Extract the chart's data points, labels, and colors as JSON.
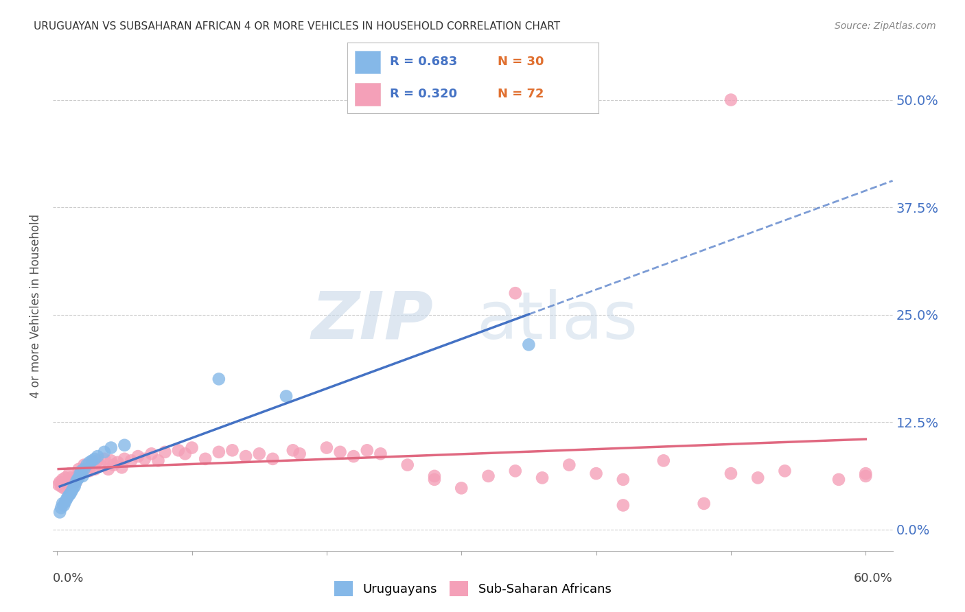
{
  "title": "URUGUAYAN VS SUBSAHARAN AFRICAN 4 OR MORE VEHICLES IN HOUSEHOLD CORRELATION CHART",
  "source": "Source: ZipAtlas.com",
  "ylabel": "4 or more Vehicles in Household",
  "ytick_labels": [
    "0.0%",
    "12.5%",
    "25.0%",
    "37.5%",
    "50.0%"
  ],
  "ytick_values": [
    0.0,
    0.125,
    0.25,
    0.375,
    0.5
  ],
  "xlim": [
    -0.003,
    0.62
  ],
  "ylim": [
    -0.025,
    0.545
  ],
  "color_uruguayan": "#85b8e8",
  "color_subsaharan": "#f4a0b8",
  "trendline_uru_color": "#4472c4",
  "trendline_sub_color": "#e06880",
  "background_color": "#ffffff",
  "grid_color": "#cccccc",
  "right_axis_color": "#4472c4",
  "legend_r_color": "#4472c4",
  "legend_n_color": "#e07030",
  "uruguayan_x": [
    0.002,
    0.003,
    0.004,
    0.005,
    0.006,
    0.007,
    0.008,
    0.009,
    0.01,
    0.011,
    0.012,
    0.013,
    0.014,
    0.015,
    0.016,
    0.017,
    0.018,
    0.019,
    0.02,
    0.022,
    0.024,
    0.026,
    0.028,
    0.03,
    0.035,
    0.04,
    0.05,
    0.12,
    0.17,
    0.35
  ],
  "uruguayan_y": [
    0.02,
    0.025,
    0.03,
    0.028,
    0.032,
    0.035,
    0.038,
    0.04,
    0.042,
    0.045,
    0.048,
    0.05,
    0.055,
    0.058,
    0.06,
    0.065,
    0.068,
    0.062,
    0.07,
    0.075,
    0.078,
    0.08,
    0.082,
    0.085,
    0.09,
    0.095,
    0.098,
    0.175,
    0.155,
    0.215
  ],
  "subsaharan_x": [
    0.001,
    0.002,
    0.003,
    0.004,
    0.005,
    0.006,
    0.007,
    0.008,
    0.009,
    0.01,
    0.012,
    0.014,
    0.015,
    0.016,
    0.018,
    0.02,
    0.022,
    0.024,
    0.026,
    0.028,
    0.03,
    0.032,
    0.035,
    0.038,
    0.04,
    0.042,
    0.045,
    0.048,
    0.05,
    0.055,
    0.06,
    0.065,
    0.07,
    0.075,
    0.08,
    0.09,
    0.095,
    0.1,
    0.11,
    0.12,
    0.13,
    0.14,
    0.15,
    0.16,
    0.175,
    0.18,
    0.2,
    0.21,
    0.22,
    0.23,
    0.24,
    0.26,
    0.28,
    0.3,
    0.32,
    0.34,
    0.36,
    0.38,
    0.4,
    0.42,
    0.45,
    0.48,
    0.5,
    0.52,
    0.54,
    0.58,
    0.6,
    0.34,
    0.6,
    0.28,
    0.42,
    0.5
  ],
  "subsaharan_y": [
    0.052,
    0.055,
    0.05,
    0.058,
    0.048,
    0.06,
    0.055,
    0.052,
    0.065,
    0.06,
    0.058,
    0.055,
    0.062,
    0.07,
    0.065,
    0.075,
    0.072,
    0.068,
    0.078,
    0.07,
    0.08,
    0.075,
    0.082,
    0.07,
    0.08,
    0.075,
    0.078,
    0.072,
    0.082,
    0.08,
    0.085,
    0.082,
    0.088,
    0.08,
    0.09,
    0.092,
    0.088,
    0.095,
    0.082,
    0.09,
    0.092,
    0.085,
    0.088,
    0.082,
    0.092,
    0.088,
    0.095,
    0.09,
    0.085,
    0.092,
    0.088,
    0.075,
    0.058,
    0.048,
    0.062,
    0.068,
    0.06,
    0.075,
    0.065,
    0.058,
    0.08,
    0.03,
    0.065,
    0.06,
    0.068,
    0.058,
    0.062,
    0.275,
    0.065,
    0.062,
    0.028,
    0.5
  ]
}
